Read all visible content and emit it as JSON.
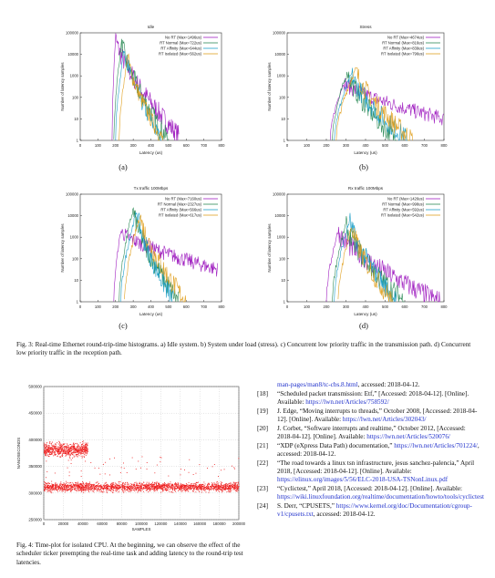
{
  "colors": {
    "nort": "#a020c0",
    "normal": "#2d8b57",
    "affinity": "#20a0c8",
    "isolated": "#e0a020",
    "cpu": "#ee2020"
  },
  "histograms": [
    {
      "title": "Idle",
      "sublabel": "(a)",
      "legend": [
        "No RT (Max=1496us)",
        "RT Normal (Max=722us)",
        "RT Affinity (Max=644us)",
        "RT Isolated (Max=562us)"
      ]
    },
    {
      "title": "Stress",
      "sublabel": "(b)",
      "legend": [
        "No RT (Max=4674us)",
        "RT Normal (Max=816us)",
        "RT Affinity (Max=839us)",
        "RT Isolated (Max=796us)"
      ]
    },
    {
      "title": "Tx traffic 100Mbps",
      "sublabel": "(c)",
      "legend": [
        "No RT (Max=7160us)",
        "RT Normal (Max=2327us)",
        "RT Affinity (Max=566us)",
        "RT Isolated (Max=617us)"
      ]
    },
    {
      "title": "Rx traffic 100Mbps",
      "sublabel": "(d)",
      "legend": [
        "No RT (Max=1426us)",
        "RT Normal (Max=998us)",
        "RT Affinity (Max=592us)",
        "RT Isolated (Max=542us)"
      ]
    }
  ],
  "histo_axes": {
    "xlabel": "Latency (us)",
    "ylabel": "Number of latency samples",
    "xticks": [
      "0",
      "100",
      "200",
      "300",
      "400",
      "500",
      "600",
      "700",
      "800"
    ],
    "yticks": [
      "1",
      "10",
      "100",
      "1000",
      "10000",
      "100000"
    ]
  },
  "fig3": {
    "label": "Fig. 3:",
    "text": "Real-time Ethernet round-trip-time histograms. a) Idle system. b) System under load (stress). c) Concurrent low priority traffic in the transmission path. d) Concurrent low priority traffic in the reception path."
  },
  "cpu_plot": {
    "ylabel": "NANOSECONDS",
    "xlabel": "SAMPLES",
    "yticks": [
      "250000",
      "300000",
      "350000",
      "400000",
      "450000",
      "500000"
    ],
    "xticks": [
      "0",
      "20000",
      "40000",
      "60000",
      "80000",
      "100000",
      "120000",
      "140000",
      "160000",
      "180000",
      "200000"
    ]
  },
  "fig4": {
    "label": "Fig. 4:",
    "text": "Time-plot for isolated CPU. At the beginning, we can observe the effect of the scheduler ticker preempting the real-time task and adding latency to the round-trip test latencies."
  },
  "refs_top": {
    "link": "man-pages/man8/tc-cbs.8.html",
    "rest": ", accessed: 2018-04-12."
  },
  "references": [
    {
      "num": "[18]",
      "text": "“Scheduled packet transmission: Etf,” [Accessed: 2018-04-12]. [Online]. Available: ",
      "link": "https://lwn.net/Articles/758592/",
      "tail": ""
    },
    {
      "num": "[19]",
      "text": "J. Edge, “Moving interrupts to threads,” October 2008, [Accessed: 2018-04-12]. [Online]. Available: ",
      "link": "https://lwn.net/Articles/302043/",
      "tail": ""
    },
    {
      "num": "[20]",
      "text": "J. Corbet, “Software interrupts and realtime,” October 2012, [Accessed: 2018-04-12]. [Online]. Available: ",
      "link": "https://lwn.net/Articles/520076/",
      "tail": ""
    },
    {
      "num": "[21]",
      "text": "“XDP (eXpress Data Path) documentation,” ",
      "link": "https://lwn.net/Articles/701224/",
      "tail": ", accessed: 2018-04-12."
    },
    {
      "num": "[22]",
      "text": "“The road towards a linux tsn infrastructure, jesus sanchez-palencia,” April 2018, [Accessed: 2018-04-12]. [Online]. Available: ",
      "link": "https://elinux.org/images/5/56/ELC-2018-USA-TSNonLinux.pdf",
      "tail": ""
    },
    {
      "num": "[23]",
      "text": "“Cyclictest,” April 2018, [Accessed: 2018-04-12]. [Online]. Available: ",
      "link": "https://wiki.linuxfoundation.org/realtime/documentation/howto/tools/cyclictest",
      "tail": ""
    },
    {
      "num": "[24]",
      "text": "S. Derr, “CPUSETS,” ",
      "link": "https://www.kernel.org/doc/Documentation/cgroup-v1/cpusets.txt",
      "tail": ", accessed: 2018-04-12."
    }
  ]
}
